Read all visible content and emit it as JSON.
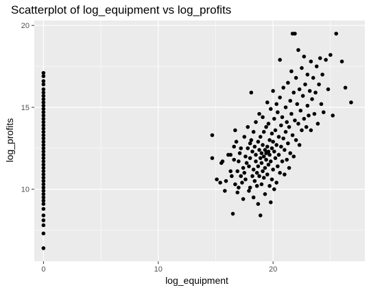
{
  "chart_data": {
    "type": "scatter",
    "title": "Scatterplot of log_equipment vs log_profits",
    "xlabel": "log_equipment",
    "ylabel": "log_profits",
    "xlim": [
      -0.8,
      28.0
    ],
    "ylim": [
      5.6,
      20.3
    ],
    "x_ticks": [
      0,
      10,
      20
    ],
    "x_tick_labels": [
      "0",
      "10",
      "20"
    ],
    "x_minor_ticks": [
      5,
      15,
      25
    ],
    "y_ticks": [
      10,
      15,
      20
    ],
    "y_tick_labels": [
      "10",
      "15",
      "20"
    ],
    "y_minor_ticks": [
      7.5,
      12.5,
      17.5
    ],
    "grid": true,
    "legend": "none",
    "colors": {
      "panel": "#ebebeb",
      "grid": "#ffffff",
      "point": "#000000",
      "tick": "#333333"
    },
    "points": [
      [
        0,
        17.1
      ],
      [
        0,
        16.9
      ],
      [
        0,
        16.6
      ],
      [
        0,
        16.4
      ],
      [
        0,
        16.1
      ],
      [
        0,
        15.9
      ],
      [
        0,
        15.7
      ],
      [
        0,
        15.5
      ],
      [
        0,
        15.3
      ],
      [
        0,
        15.1
      ],
      [
        0,
        14.9
      ],
      [
        0,
        14.7
      ],
      [
        0,
        14.5
      ],
      [
        0,
        14.3
      ],
      [
        0,
        14.1
      ],
      [
        0,
        13.9
      ],
      [
        0,
        13.7
      ],
      [
        0,
        13.5
      ],
      [
        0,
        13.3
      ],
      [
        0,
        13.1
      ],
      [
        0,
        12.9
      ],
      [
        0,
        12.7
      ],
      [
        0,
        12.5
      ],
      [
        0,
        12.3
      ],
      [
        0,
        12.1
      ],
      [
        0,
        11.9
      ],
      [
        0,
        11.7
      ],
      [
        0,
        11.5
      ],
      [
        0,
        11.3
      ],
      [
        0,
        11.1
      ],
      [
        0,
        10.9
      ],
      [
        0,
        10.7
      ],
      [
        0,
        10.5
      ],
      [
        0,
        10.3
      ],
      [
        0,
        10.1
      ],
      [
        0,
        9.9
      ],
      [
        0,
        9.7
      ],
      [
        0,
        9.5
      ],
      [
        0,
        9.3
      ],
      [
        0,
        9.1
      ],
      [
        0,
        8.8
      ],
      [
        0,
        8.4
      ],
      [
        0,
        8.1
      ],
      [
        0,
        7.8
      ],
      [
        0,
        7.3
      ],
      [
        0,
        6.4
      ],
      [
        14.7,
        13.3
      ],
      [
        14.7,
        11.9
      ],
      [
        15.1,
        10.6
      ],
      [
        15.4,
        10.4
      ],
      [
        15.5,
        11.6
      ],
      [
        15.6,
        11.7
      ],
      [
        15.8,
        9.9
      ],
      [
        15.9,
        10.5
      ],
      [
        16.1,
        12.1
      ],
      [
        16.3,
        12.1
      ],
      [
        16.3,
        11.1
      ],
      [
        16.4,
        10.8
      ],
      [
        16.5,
        8.5
      ],
      [
        16.6,
        11.8
      ],
      [
        16.6,
        12.6
      ],
      [
        16.7,
        10.3
      ],
      [
        16.7,
        13.6
      ],
      [
        16.8,
        12.9
      ],
      [
        16.9,
        11.1
      ],
      [
        16.9,
        9.8
      ],
      [
        17.0,
        10.1
      ],
      [
        17.0,
        11.7
      ],
      [
        17.1,
        12.2
      ],
      [
        17.2,
        10.8
      ],
      [
        17.2,
        12.5
      ],
      [
        17.3,
        10.4
      ],
      [
        17.4,
        11.3
      ],
      [
        17.4,
        9.4
      ],
      [
        17.5,
        13.2
      ],
      [
        17.5,
        11.0
      ],
      [
        17.6,
        12.0
      ],
      [
        17.6,
        10.6
      ],
      [
        17.7,
        11.6
      ],
      [
        17.8,
        13.8
      ],
      [
        17.8,
        12.5
      ],
      [
        17.9,
        9.9
      ],
      [
        17.9,
        11.4
      ],
      [
        18.0,
        10.1
      ],
      [
        18.0,
        12.8
      ],
      [
        18.0,
        11.9
      ],
      [
        18.1,
        15.9
      ],
      [
        18.1,
        13.0
      ],
      [
        18.2,
        10.8
      ],
      [
        18.2,
        12.3
      ],
      [
        18.3,
        9.5
      ],
      [
        18.3,
        11.2
      ],
      [
        18.3,
        13.5
      ],
      [
        18.4,
        12.6
      ],
      [
        18.4,
        10.5
      ],
      [
        18.5,
        11.7
      ],
      [
        18.5,
        14.1
      ],
      [
        18.5,
        12.1
      ],
      [
        18.6,
        10.2
      ],
      [
        18.6,
        11.0
      ],
      [
        18.7,
        12.9
      ],
      [
        18.7,
        11.4
      ],
      [
        18.7,
        9.1
      ],
      [
        18.8,
        14.6
      ],
      [
        18.8,
        12.4
      ],
      [
        18.8,
        10.8
      ],
      [
        18.9,
        11.9
      ],
      [
        18.9,
        13.2
      ],
      [
        18.9,
        8.4
      ],
      [
        19.0,
        12.2
      ],
      [
        19.0,
        10.3
      ],
      [
        19.0,
        11.6
      ],
      [
        19.1,
        14.4
      ],
      [
        19.1,
        12.7
      ],
      [
        19.1,
        11.1
      ],
      [
        19.2,
        13.5
      ],
      [
        19.2,
        12.0
      ],
      [
        19.2,
        10.7
      ],
      [
        19.3,
        12.4
      ],
      [
        19.3,
        11.3
      ],
      [
        19.3,
        9.7
      ],
      [
        19.4,
        13.8
      ],
      [
        19.4,
        12.2
      ],
      [
        19.4,
        11.8
      ],
      [
        19.5,
        15.3
      ],
      [
        19.5,
        12.6
      ],
      [
        19.5,
        10.9
      ],
      [
        19.6,
        14.0
      ],
      [
        19.6,
        12.3
      ],
      [
        19.6,
        11.5
      ],
      [
        19.7,
        13.0
      ],
      [
        19.7,
        12.1
      ],
      [
        19.7,
        10.2
      ],
      [
        19.8,
        14.9
      ],
      [
        19.8,
        11.7
      ],
      [
        19.8,
        9.2
      ],
      [
        19.9,
        13.4
      ],
      [
        19.9,
        12.5
      ],
      [
        19.9,
        10.6
      ],
      [
        20.0,
        16.0
      ],
      [
        20.0,
        12.9
      ],
      [
        20.0,
        11.2
      ],
      [
        20.1,
        14.3
      ],
      [
        20.1,
        12.3
      ],
      [
        20.1,
        10.0
      ],
      [
        20.2,
        13.6
      ],
      [
        20.2,
        11.9
      ],
      [
        20.3,
        15.2
      ],
      [
        20.3,
        12.7
      ],
      [
        20.3,
        10.4
      ],
      [
        20.4,
        14.7
      ],
      [
        20.4,
        11.4
      ],
      [
        20.5,
        13.2
      ],
      [
        20.5,
        12.1
      ],
      [
        20.6,
        17.9
      ],
      [
        20.6,
        15.6
      ],
      [
        20.6,
        11.0
      ],
      [
        20.7,
        13.9
      ],
      [
        20.7,
        12.6
      ],
      [
        20.8,
        14.4
      ],
      [
        20.8,
        11.7
      ],
      [
        20.9,
        16.2
      ],
      [
        20.9,
        13.1
      ],
      [
        21.0,
        12.4
      ],
      [
        21.0,
        10.9
      ],
      [
        21.1,
        15.0
      ],
      [
        21.1,
        13.5
      ],
      [
        21.2,
        11.8
      ],
      [
        21.2,
        14.1
      ],
      [
        21.3,
        16.5
      ],
      [
        21.3,
        12.8
      ],
      [
        21.4,
        13.8
      ],
      [
        21.4,
        11.3
      ],
      [
        21.5,
        15.4
      ],
      [
        21.5,
        12.2
      ],
      [
        21.6,
        17.2
      ],
      [
        21.6,
        14.6
      ],
      [
        21.7,
        19.5
      ],
      [
        21.7,
        13.3
      ],
      [
        21.8,
        15.9
      ],
      [
        21.8,
        12.0
      ],
      [
        21.9,
        19.5
      ],
      [
        21.9,
        14.2
      ],
      [
        22.0,
        16.8
      ],
      [
        22.0,
        13.0
      ],
      [
        22.1,
        15.2
      ],
      [
        22.2,
        18.5
      ],
      [
        22.2,
        14.0
      ],
      [
        22.3,
        16.1
      ],
      [
        22.3,
        12.7
      ],
      [
        22.4,
        14.8
      ],
      [
        22.5,
        17.4
      ],
      [
        22.5,
        13.6
      ],
      [
        22.6,
        15.7
      ],
      [
        22.7,
        18.1
      ],
      [
        22.7,
        14.3
      ],
      [
        22.8,
        16.4
      ],
      [
        22.9,
        13.8
      ],
      [
        23.0,
        17.0
      ],
      [
        23.0,
        15.1
      ],
      [
        23.1,
        14.5
      ],
      [
        23.2,
        16.0
      ],
      [
        23.3,
        17.8
      ],
      [
        23.3,
        13.6
      ],
      [
        23.4,
        15.5
      ],
      [
        23.5,
        16.8
      ],
      [
        23.6,
        14.6
      ],
      [
        23.7,
        15.9
      ],
      [
        23.8,
        17.5
      ],
      [
        23.9,
        14.0
      ],
      [
        24.0,
        16.4
      ],
      [
        24.1,
        18.0
      ],
      [
        24.2,
        15.2
      ],
      [
        24.3,
        17.0
      ],
      [
        24.4,
        14.7
      ],
      [
        24.6,
        17.9
      ],
      [
        24.8,
        16.1
      ],
      [
        25.0,
        18.2
      ],
      [
        25.2,
        14.5
      ],
      [
        25.5,
        19.5
      ],
      [
        26.0,
        17.8
      ],
      [
        26.3,
        16.2
      ],
      [
        26.8,
        15.3
      ]
    ]
  }
}
